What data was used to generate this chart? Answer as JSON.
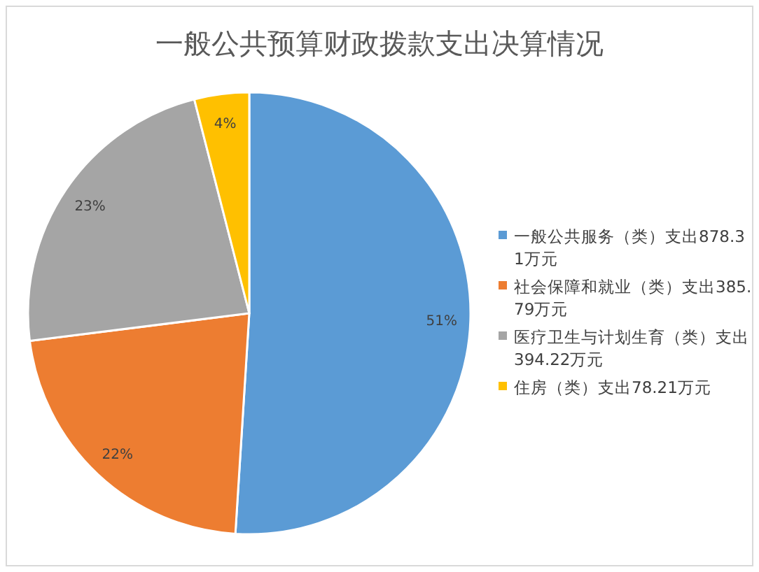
{
  "chart_data": {
    "type": "pie",
    "title": "一般公共预算财政拨款支出决算情况",
    "categories": [
      "一般公共服务（类）支出878.31万元",
      "社会保障和就业（类）支出385.79万元",
      "医疗卫生与计划生育（类）支出394.22万元",
      "住房（类）支出78.21万元"
    ],
    "values": [
      51,
      22,
      23,
      4
    ],
    "value_labels": [
      "51%",
      "22%",
      "23%",
      "4%"
    ],
    "colors": [
      "#5b9bd5",
      "#ed7d31",
      "#a5a5a5",
      "#ffc000"
    ],
    "legend": "right"
  }
}
